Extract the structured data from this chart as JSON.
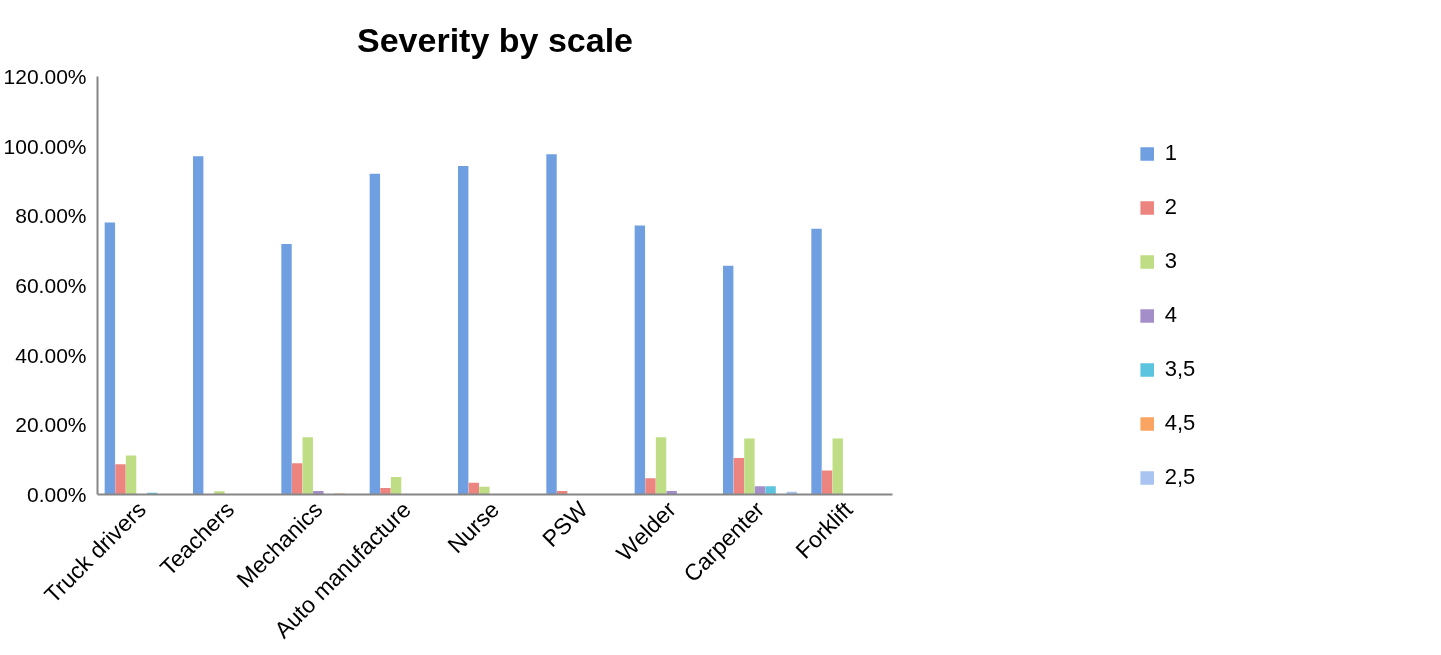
{
  "chart_data": {
    "type": "bar",
    "title": "Severity by scale",
    "categories": [
      "Truck drivers",
      "Teachers",
      "Mechanics",
      "Auto manufacture",
      "Nurse",
      "PSW",
      "Welder",
      "Carpenter",
      "Forklift"
    ],
    "series": [
      {
        "name": "1",
        "color": "#6f9fe0",
        "values": [
          78.1,
          97.1,
          71.9,
          92.1,
          94.3,
          97.7,
          77.2,
          65.7,
          76.3
        ]
      },
      {
        "name": "2",
        "color": "#ec8580",
        "values": [
          8.7,
          null,
          9.0,
          1.9,
          3.4,
          1.0,
          4.7,
          10.5,
          6.9
        ]
      },
      {
        "name": "3",
        "color": "#bedd84",
        "values": [
          11.2,
          0.9,
          16.4,
          5.0,
          2.2,
          null,
          16.4,
          16.1,
          16.1
        ]
      },
      {
        "name": "4",
        "color": "#a48ec9",
        "values": [
          null,
          null,
          1.0,
          null,
          null,
          null,
          1.0,
          2.4,
          null
        ]
      },
      {
        "name": "3,5",
        "color": "#5cc4de",
        "values": [
          0.5,
          null,
          null,
          null,
          null,
          null,
          null,
          2.4,
          null
        ]
      },
      {
        "name": "4,5",
        "color": "#f9a460",
        "values": [
          null,
          null,
          0.3,
          null,
          null,
          null,
          null,
          null,
          null
        ]
      },
      {
        "name": "2,5",
        "color": "#a9c4f0",
        "values": [
          null,
          null,
          null,
          null,
          null,
          null,
          null,
          0.8,
          null
        ]
      }
    ],
    "ylim": [
      0,
      120
    ],
    "yticks": [
      {
        "value": 0,
        "label": "0.00%"
      },
      {
        "value": 20,
        "label": "20.00%"
      },
      {
        "value": 40,
        "label": "40.00%"
      },
      {
        "value": 60,
        "label": "60.00%"
      },
      {
        "value": 80,
        "label": "80.00%"
      },
      {
        "value": 100,
        "label": "100.00%"
      },
      {
        "value": 120,
        "label": "120.00%"
      }
    ],
    "legend": "right"
  }
}
